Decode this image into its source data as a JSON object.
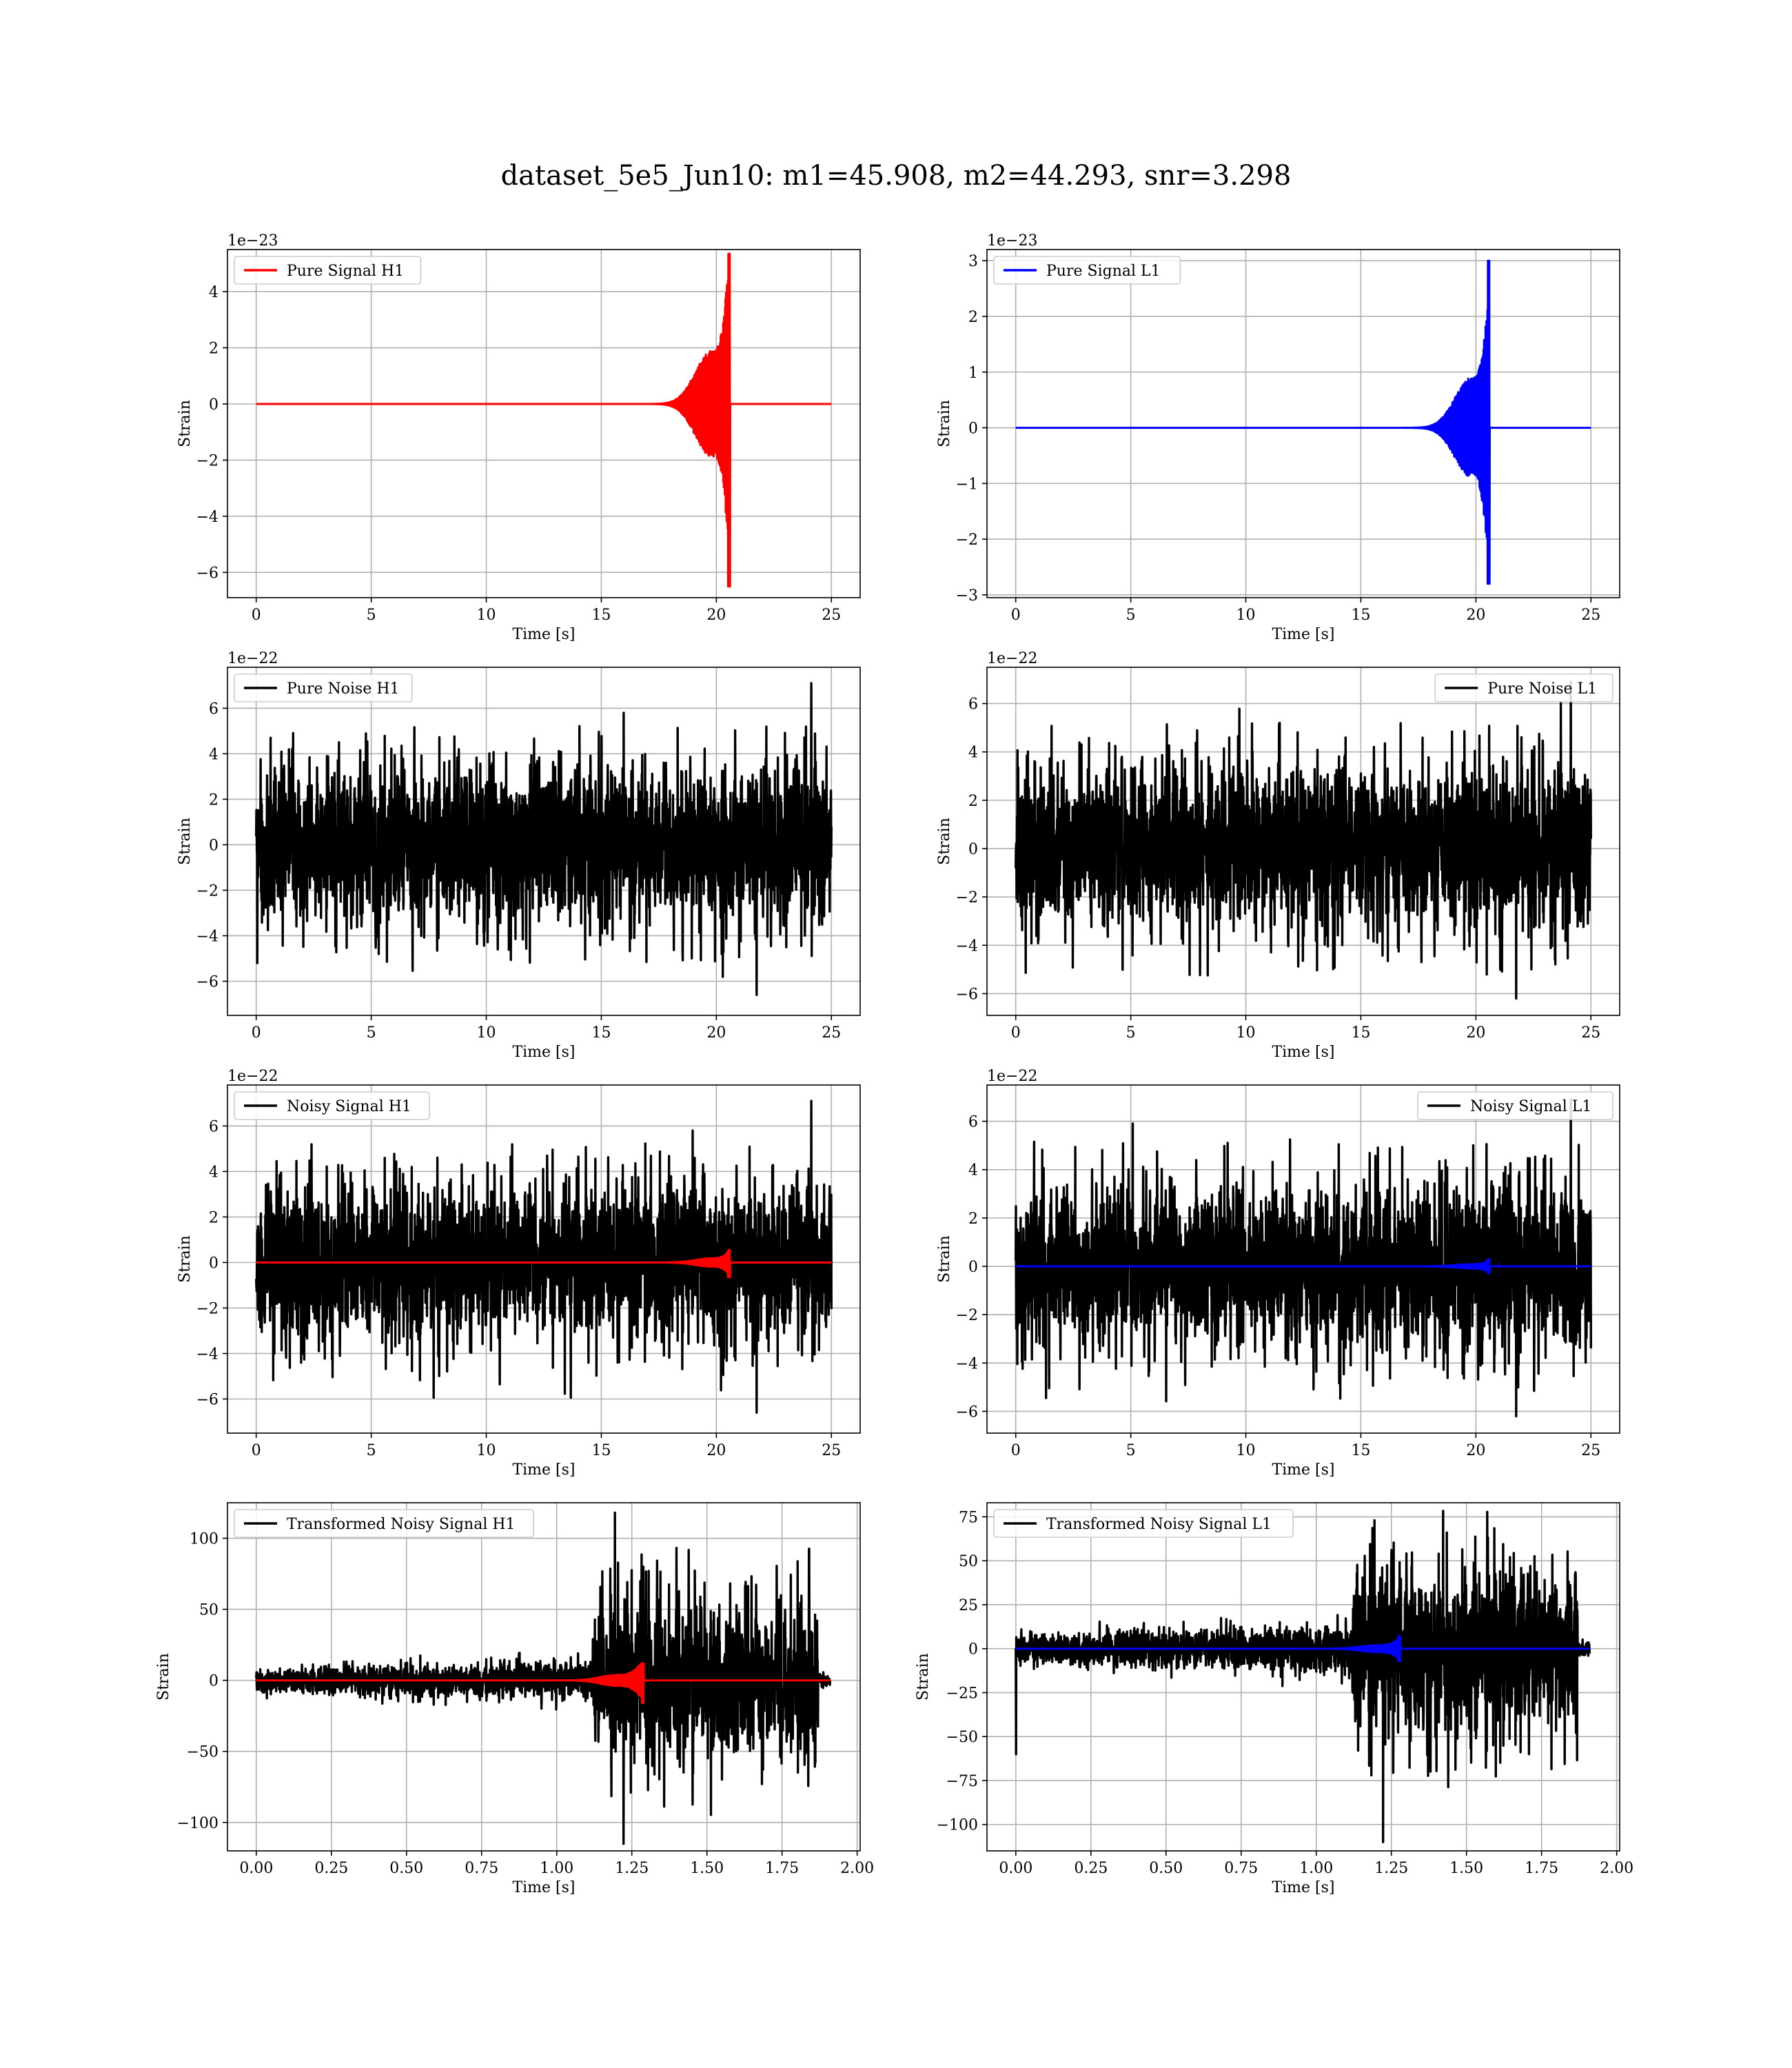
{
  "figure": {
    "title": "dataset_5e5_Jun10: m1=45.908, m2=44.293, snr=3.298"
  },
  "chart_data": [
    {
      "type": "line",
      "id": "pure-signal-h1",
      "xlabel": "Time [s]",
      "ylabel": "Strain",
      "offset_label": "1e−23",
      "xlim": [
        -1.25,
        26.25
      ],
      "ylim": [
        -6.9,
        5.5
      ],
      "xticks": [
        0,
        5,
        10,
        15,
        20,
        25
      ],
      "yticks": [
        -6,
        -4,
        -2,
        0,
        2,
        4
      ],
      "grid": true,
      "legend_loc": "upper-left",
      "series": [
        {
          "name": "Pure Signal H1",
          "color": "#ff0000",
          "kind": "chirp",
          "t_start": 0,
          "t_end": 25,
          "t_merge": 20.6,
          "amp_early": 1.9,
          "t_plateau": 19.8,
          "peak_pos": 5.35,
          "peak_neg": -6.5
        }
      ]
    },
    {
      "type": "line",
      "id": "pure-signal-l1",
      "xlabel": "Time [s]",
      "ylabel": "Strain",
      "offset_label": "1e−23",
      "xlim": [
        -1.25,
        26.25
      ],
      "ylim": [
        -3.05,
        3.2
      ],
      "xticks": [
        0,
        5,
        10,
        15,
        20,
        25
      ],
      "yticks": [
        -3,
        -2,
        -1,
        0,
        1,
        2,
        3
      ],
      "grid": true,
      "legend_loc": "upper-left",
      "series": [
        {
          "name": "Pure Signal L1",
          "color": "#0000ff",
          "kind": "chirp",
          "t_start": 0,
          "t_end": 25,
          "t_merge": 20.6,
          "amp_early": 0.9,
          "t_plateau": 19.8,
          "peak_pos": 3.0,
          "peak_neg": -2.8
        }
      ]
    },
    {
      "type": "line",
      "id": "pure-noise-h1",
      "xlabel": "Time [s]",
      "ylabel": "Strain",
      "offset_label": "1e−22",
      "xlim": [
        -1.25,
        26.25
      ],
      "ylim": [
        -7.5,
        7.8
      ],
      "xticks": [
        0,
        5,
        10,
        15,
        20,
        25
      ],
      "yticks": [
        -6,
        -4,
        -2,
        0,
        2,
        4,
        6
      ],
      "grid": true,
      "legend_loc": "upper-left",
      "series": [
        {
          "name": "Pure Noise H1",
          "color": "#000000",
          "kind": "noise",
          "t_start": 0,
          "t_end": 25,
          "band": 3.0,
          "spike_max": 7.1,
          "spike_min": -6.6
        }
      ]
    },
    {
      "type": "line",
      "id": "pure-noise-l1",
      "xlabel": "Time [s]",
      "ylabel": "Strain",
      "offset_label": "1e−22",
      "xlim": [
        -1.25,
        26.25
      ],
      "ylim": [
        -6.9,
        7.5
      ],
      "xticks": [
        0,
        5,
        10,
        15,
        20,
        25
      ],
      "yticks": [
        -6,
        -4,
        -2,
        0,
        2,
        4,
        6
      ],
      "grid": true,
      "legend_loc": "upper-right",
      "series": [
        {
          "name": "Pure Noise L1",
          "color": "#000000",
          "kind": "noise",
          "t_start": 0,
          "t_end": 25,
          "band": 3.0,
          "spike_max": 6.9,
          "spike_min": -6.2
        }
      ]
    },
    {
      "type": "line",
      "id": "noisy-signal-h1",
      "xlabel": "Time [s]",
      "ylabel": "Strain",
      "offset_label": "1e−22",
      "xlim": [
        -1.25,
        26.25
      ],
      "ylim": [
        -7.5,
        7.8
      ],
      "xticks": [
        0,
        5,
        10,
        15,
        20,
        25
      ],
      "yticks": [
        -6,
        -4,
        -2,
        0,
        2,
        4,
        6
      ],
      "grid": true,
      "legend_loc": "upper-left",
      "series": [
        {
          "name": "Noisy Signal H1",
          "color": "#000000",
          "kind": "noise",
          "t_start": 0,
          "t_end": 25,
          "band": 3.0,
          "spike_max": 7.1,
          "spike_min": -6.6
        },
        {
          "name": "",
          "color": "#ff0000",
          "kind": "chirp",
          "t_start": 0,
          "t_end": 25,
          "t_merge": 20.6,
          "amp_early": 0.19,
          "t_plateau": 19.8,
          "peak_pos": 0.55,
          "peak_neg": -0.65
        }
      ]
    },
    {
      "type": "line",
      "id": "noisy-signal-l1",
      "xlabel": "Time [s]",
      "ylabel": "Strain",
      "offset_label": "1e−22",
      "xlim": [
        -1.25,
        26.25
      ],
      "ylim": [
        -6.9,
        7.5
      ],
      "xticks": [
        0,
        5,
        10,
        15,
        20,
        25
      ],
      "yticks": [
        -6,
        -4,
        -2,
        0,
        2,
        4,
        6
      ],
      "grid": true,
      "legend_loc": "upper-right",
      "series": [
        {
          "name": "Noisy Signal L1",
          "color": "#000000",
          "kind": "noise",
          "t_start": 0,
          "t_end": 25,
          "band": 3.0,
          "spike_max": 6.9,
          "spike_min": -6.2
        },
        {
          "name": "",
          "color": "#0000ff",
          "kind": "chirp",
          "t_start": 0,
          "t_end": 25,
          "t_merge": 20.6,
          "amp_early": 0.09,
          "t_plateau": 19.8,
          "peak_pos": 0.3,
          "peak_neg": -0.28
        }
      ]
    },
    {
      "type": "line",
      "id": "transformed-noisy-signal-h1",
      "xlabel": "Time [s]",
      "ylabel": "Strain",
      "offset_label": "",
      "xlim": [
        -0.096,
        2.01
      ],
      "ylim": [
        -120,
        125
      ],
      "xticks": [
        0.0,
        0.25,
        0.5,
        0.75,
        1.0,
        1.25,
        1.5,
        1.75,
        2.0
      ],
      "xtick_labels": [
        "0.00",
        "0.25",
        "0.50",
        "0.75",
        "1.00",
        "1.25",
        "1.50",
        "1.75",
        "2.00"
      ],
      "yticks": [
        -100,
        -50,
        0,
        50,
        100
      ],
      "grid": true,
      "legend_loc": "upper-left",
      "series": [
        {
          "name": "Transformed Noisy Signal H1",
          "color": "#000000",
          "kind": "whitened",
          "t_start": 0,
          "t_end": 1.91,
          "t_jump": 1.12,
          "t_cut": 1.87,
          "amp_low": 8,
          "amp_high": 45,
          "spike_max": 118,
          "spike_min": -115
        },
        {
          "name": "",
          "color": "#ff0000",
          "kind": "chirp",
          "t_start": 0,
          "t_end": 1.91,
          "t_merge": 1.29,
          "amp_early": 4,
          "t_plateau": 1.2,
          "peak_pos": 12,
          "peak_neg": -16
        }
      ]
    },
    {
      "type": "line",
      "id": "transformed-noisy-signal-l1",
      "xlabel": "Time [s]",
      "ylabel": "Strain",
      "offset_label": "",
      "xlim": [
        -0.096,
        2.01
      ],
      "ylim": [
        -115,
        83
      ],
      "xticks": [
        0.0,
        0.25,
        0.5,
        0.75,
        1.0,
        1.25,
        1.5,
        1.75,
        2.0
      ],
      "xtick_labels": [
        "0.00",
        "0.25",
        "0.50",
        "0.75",
        "1.00",
        "1.25",
        "1.50",
        "1.75",
        "2.00"
      ],
      "yticks": [
        -100,
        -75,
        -50,
        -25,
        0,
        25,
        50,
        75
      ],
      "grid": true,
      "legend_loc": "upper-left",
      "series": [
        {
          "name": "Transformed Noisy Signal L1",
          "color": "#000000",
          "kind": "whitened",
          "t_start": 0,
          "t_end": 1.91,
          "t_jump": 1.12,
          "t_cut": 1.87,
          "amp_low": 8,
          "amp_high": 40,
          "spike_max": 73,
          "spike_min": -110,
          "first_spike": -60
        },
        {
          "name": "",
          "color": "#0000ff",
          "kind": "chirp",
          "t_start": 0,
          "t_end": 1.91,
          "t_merge": 1.28,
          "amp_early": 2,
          "t_plateau": 1.2,
          "peak_pos": 7,
          "peak_neg": -7
        }
      ]
    }
  ]
}
